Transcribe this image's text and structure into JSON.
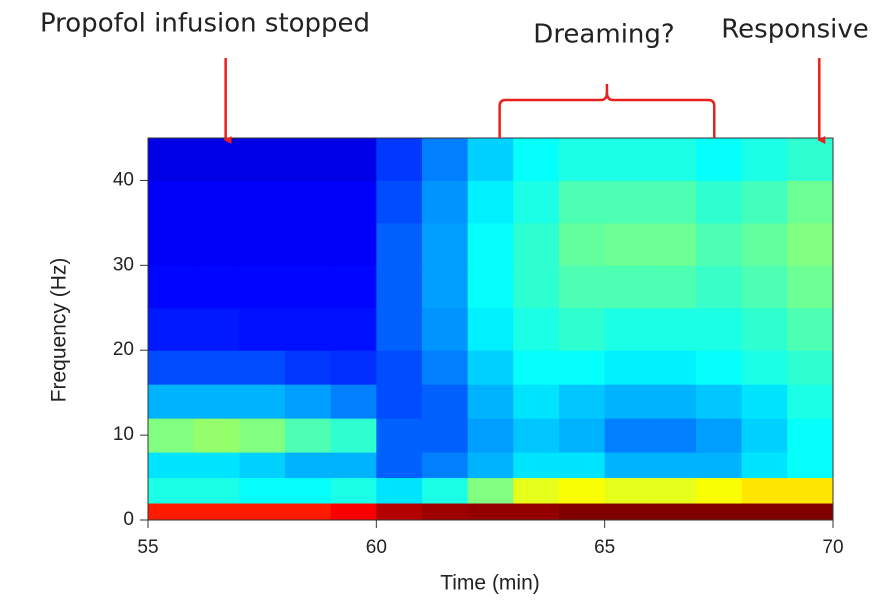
{
  "chart_data": {
    "type": "heatmap",
    "colormap": "jet",
    "xlabel": "Time (min)",
    "ylabel": "Frequency (Hz)",
    "xlim": [
      55,
      70
    ],
    "ylim": [
      0,
      45
    ],
    "xticks": [
      55,
      60,
      65,
      70
    ],
    "yticks": [
      0,
      10,
      20,
      30,
      40
    ],
    "x_bins": [
      55,
      56,
      57,
      58,
      59,
      60,
      61,
      62,
      63,
      64,
      65,
      66,
      67,
      68,
      69,
      70
    ],
    "y_bins": [
      0,
      2,
      5,
      8,
      12,
      16,
      20,
      25,
      30,
      35,
      40,
      45
    ],
    "values": [
      [
        0.85,
        0.85,
        0.85,
        0.85,
        0.88,
        0.95,
        0.97,
        0.98,
        0.98,
        1,
        1,
        1,
        1,
        1,
        1
      ],
      [
        0.4,
        0.4,
        0.38,
        0.38,
        0.4,
        0.35,
        0.4,
        0.5,
        0.6,
        0.62,
        0.6,
        0.6,
        0.62,
        0.65,
        0.65
      ],
      [
        0.35,
        0.35,
        0.33,
        0.3,
        0.3,
        0.22,
        0.25,
        0.3,
        0.35,
        0.35,
        0.3,
        0.3,
        0.3,
        0.35,
        0.38
      ],
      [
        0.5,
        0.52,
        0.5,
        0.45,
        0.42,
        0.22,
        0.22,
        0.28,
        0.32,
        0.3,
        0.25,
        0.25,
        0.28,
        0.33,
        0.38
      ],
      [
        0.3,
        0.3,
        0.3,
        0.28,
        0.25,
        0.2,
        0.22,
        0.3,
        0.35,
        0.32,
        0.3,
        0.3,
        0.32,
        0.35,
        0.4
      ],
      [
        0.2,
        0.2,
        0.2,
        0.18,
        0.17,
        0.2,
        0.25,
        0.33,
        0.38,
        0.38,
        0.36,
        0.36,
        0.38,
        0.4,
        0.42
      ],
      [
        0.15,
        0.15,
        0.14,
        0.14,
        0.14,
        0.22,
        0.27,
        0.36,
        0.4,
        0.42,
        0.4,
        0.4,
        0.4,
        0.42,
        0.45
      ],
      [
        0.13,
        0.13,
        0.13,
        0.13,
        0.13,
        0.22,
        0.28,
        0.38,
        0.42,
        0.45,
        0.45,
        0.45,
        0.43,
        0.45,
        0.48
      ],
      [
        0.12,
        0.12,
        0.12,
        0.12,
        0.12,
        0.22,
        0.28,
        0.38,
        0.42,
        0.47,
        0.48,
        0.48,
        0.45,
        0.47,
        0.5
      ],
      [
        0.12,
        0.12,
        0.12,
        0.12,
        0.12,
        0.2,
        0.27,
        0.36,
        0.4,
        0.45,
        0.45,
        0.45,
        0.42,
        0.44,
        0.48
      ],
      [
        0.1,
        0.1,
        0.1,
        0.1,
        0.1,
        0.18,
        0.25,
        0.33,
        0.38,
        0.4,
        0.4,
        0.4,
        0.38,
        0.4,
        0.42
      ]
    ],
    "annotation_color": "#e8201e",
    "annotations": [
      {
        "text": "Propofol infusion stopped",
        "x": 56.7
      },
      {
        "text": "Dreaming?",
        "x_start": 62.7,
        "x_end": 67.4
      },
      {
        "text": "Responsive",
        "x": 69.7
      }
    ]
  }
}
